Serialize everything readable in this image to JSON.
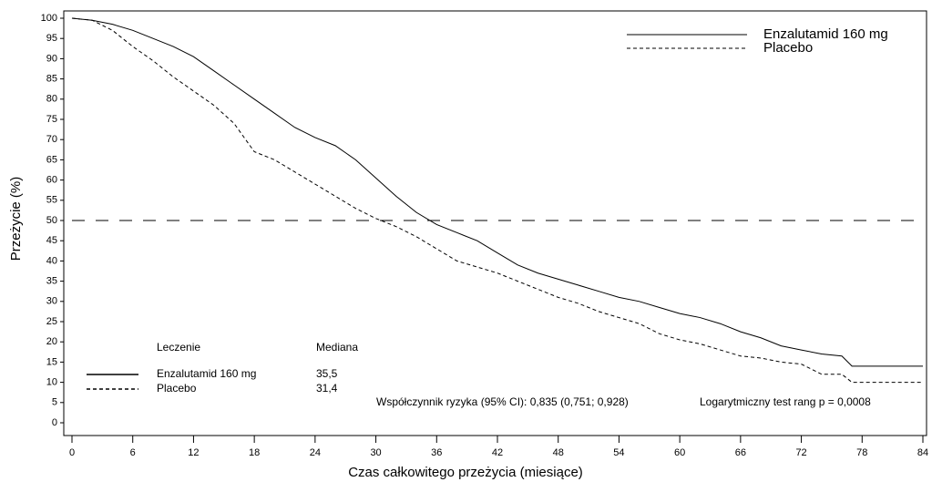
{
  "chart_data": {
    "type": "line",
    "x_label": "Czas całkowitego przeżycia (miesiące)",
    "y_label": "Przeżycie (%)",
    "x": [
      0,
      2,
      4,
      6,
      8,
      10,
      12,
      14,
      16,
      18,
      20,
      22,
      24,
      26,
      28,
      30,
      32,
      34,
      36,
      38,
      40,
      42,
      44,
      46,
      48,
      50,
      52,
      54,
      56,
      58,
      60,
      62,
      64,
      66,
      68,
      70,
      72,
      74,
      76,
      77,
      84
    ],
    "series": [
      {
        "name": "Enzalutamid 160 mg",
        "color": "#000000",
        "dash": "solid",
        "median_label": "35,5",
        "values": [
          100,
          99.5,
          98.5,
          97,
          95,
          93,
          90.5,
          87,
          83.5,
          80,
          76.5,
          73,
          70.5,
          68.5,
          65,
          60.5,
          56,
          52,
          49,
          47,
          45,
          42,
          39,
          37,
          35.5,
          34,
          32.5,
          31,
          30,
          28.5,
          27,
          26,
          24.5,
          22.5,
          21,
          19,
          18,
          17,
          16.5,
          14,
          14
        ]
      },
      {
        "name": "Placebo",
        "color": "#000000",
        "dash": "dashed",
        "median_label": "31,4",
        "values": [
          100,
          99.5,
          97,
          93,
          89.5,
          85.5,
          82,
          78.5,
          74,
          67,
          65,
          62,
          59,
          56,
          53,
          50.5,
          48.5,
          46,
          43,
          40,
          38.5,
          37,
          35,
          33,
          31,
          29.5,
          27.5,
          26,
          24.5,
          22,
          20.5,
          19.5,
          18,
          16.5,
          16,
          15,
          14.5,
          12,
          12,
          10,
          10
        ]
      }
    ],
    "reference_line": 50,
    "xlim": [
      0,
      84
    ],
    "xticks": [
      0,
      6,
      12,
      18,
      24,
      30,
      36,
      42,
      48,
      54,
      60,
      66,
      72,
      78,
      84
    ],
    "ylim": [
      0,
      100
    ],
    "yticks": [
      0,
      5,
      10,
      15,
      20,
      25,
      30,
      35,
      40,
      45,
      50,
      55,
      60,
      65,
      70,
      75,
      80,
      85,
      90,
      95,
      100
    ],
    "legend_position": "upper right",
    "table_headers": [
      "Leczenie",
      "Mediana"
    ],
    "annotations": [
      "Współczynnik ryzyka (95% CI): 0,835 (0,751; 0,928)",
      "Logarytmiczny test rang p = 0,0008"
    ]
  }
}
